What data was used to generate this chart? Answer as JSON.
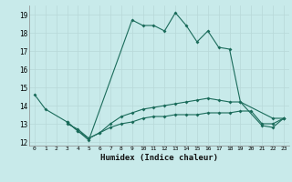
{
  "xlabel": "Humidex (Indice chaleur)",
  "bg_color": "#c8eaea",
  "grid_color": "#b8d8d8",
  "line_color": "#1a6b5a",
  "xlim": [
    -0.5,
    23.5
  ],
  "ylim": [
    11.8,
    19.5
  ],
  "yticks": [
    12,
    13,
    14,
    15,
    16,
    17,
    18,
    19
  ],
  "series1_x": [
    0,
    1,
    3,
    4,
    5,
    9,
    10,
    11,
    12,
    13,
    14,
    15,
    16,
    17,
    18,
    19,
    22,
    23
  ],
  "series1_y": [
    14.6,
    13.8,
    13.1,
    12.6,
    12.1,
    18.7,
    18.4,
    18.4,
    18.1,
    19.1,
    18.4,
    17.5,
    18.1,
    17.2,
    17.1,
    14.2,
    13.3,
    13.3
  ],
  "series2_x": [
    3,
    4,
    5,
    6,
    7,
    8,
    9,
    10,
    11,
    12,
    13,
    14,
    15,
    16,
    17,
    18,
    19,
    21,
    22,
    23
  ],
  "series2_y": [
    13.1,
    12.6,
    12.2,
    12.5,
    13.0,
    13.4,
    13.6,
    13.8,
    13.9,
    14.0,
    14.1,
    14.2,
    14.3,
    14.4,
    14.3,
    14.2,
    14.2,
    12.9,
    12.8,
    13.3
  ],
  "series3_x": [
    3,
    4,
    5,
    6,
    7,
    8,
    9,
    10,
    11,
    12,
    13,
    14,
    15,
    16,
    17,
    18,
    19,
    20,
    21,
    22,
    23
  ],
  "series3_y": [
    13.0,
    12.7,
    12.2,
    12.5,
    12.8,
    13.0,
    13.1,
    13.3,
    13.4,
    13.4,
    13.5,
    13.5,
    13.5,
    13.6,
    13.6,
    13.6,
    13.7,
    13.7,
    13.0,
    13.0,
    13.3
  ]
}
